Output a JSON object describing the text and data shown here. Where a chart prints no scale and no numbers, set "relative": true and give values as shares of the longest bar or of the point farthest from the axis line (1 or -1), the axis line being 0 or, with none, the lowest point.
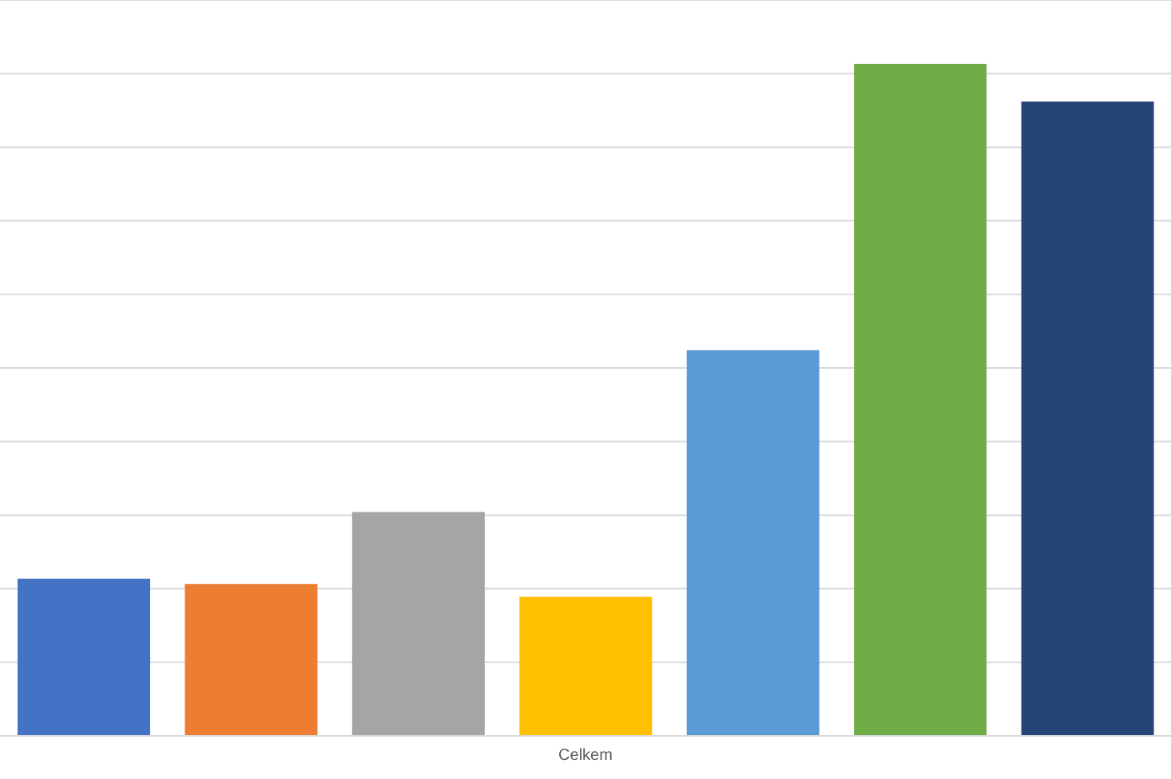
{
  "chart_data": {
    "type": "bar",
    "relative": true,
    "categories": [
      null,
      null,
      null,
      "Celkem",
      null,
      null,
      null
    ],
    "grid": "y",
    "values": [
      0.234,
      0.226,
      0.333,
      0.207,
      0.574,
      1,
      0.944
    ],
    "colors": [
      "#4472c4",
      "#ed7d31",
      "#a5a5a5",
      "#ffc000",
      "#5b9bd5",
      "#70ad47",
      "#264478"
    ]
  }
}
